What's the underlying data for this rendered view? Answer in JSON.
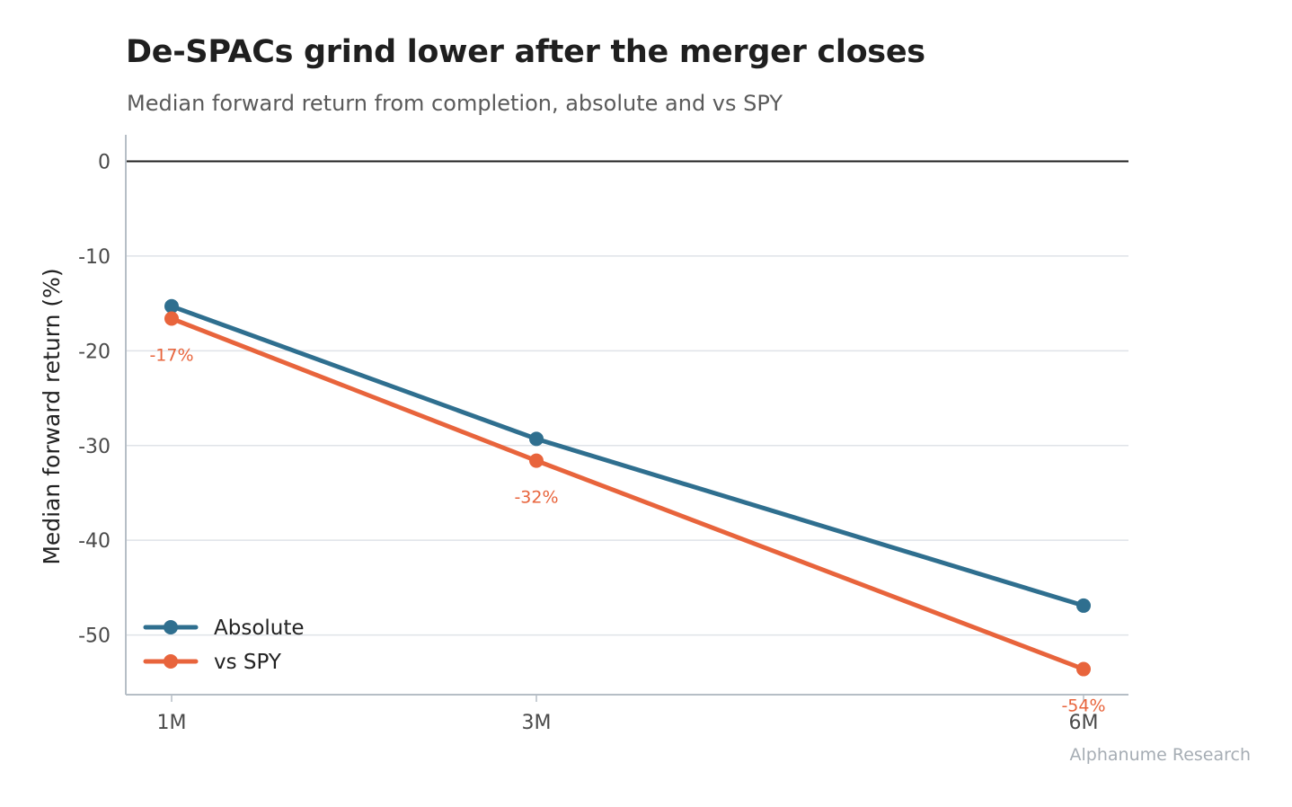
{
  "title": "De-SPACs grind lower after the merger closes",
  "subtitle": "Median forward return from completion, absolute and vs SPY",
  "source": "Alphanume Research",
  "chart_data": {
    "type": "line",
    "title": "De-SPACs grind lower after the merger closes",
    "subtitle": "Median forward return from completion, absolute and vs SPY",
    "xlabel": "",
    "ylabel": "Median forward return (%)",
    "categories": [
      "1M",
      "3M",
      "6M"
    ],
    "ylim": [
      -56.3,
      2.8
    ],
    "yticks": [
      0,
      -10,
      -20,
      -30,
      -40,
      -50
    ],
    "zero_line": true,
    "grid": "horizontal",
    "legend_position": "lower-left",
    "series": [
      {
        "name": "Absolute",
        "color": "#2f6f8f",
        "values": [
          -15.3,
          -29.3,
          -46.9
        ],
        "labels": []
      },
      {
        "name": "vs SPY",
        "color": "#e8643c",
        "values": [
          -16.6,
          -31.6,
          -53.6
        ],
        "labels": [
          "-17%",
          "-32%",
          "-54%"
        ]
      }
    ]
  }
}
